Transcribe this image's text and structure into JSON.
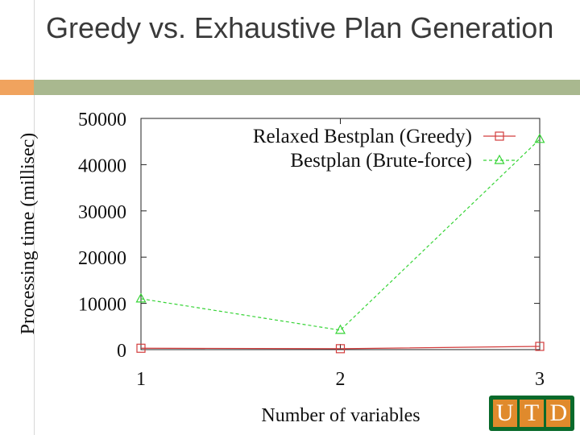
{
  "slide": {
    "title": "Greedy vs. Exhaustive Plan Generation"
  },
  "logo": {
    "text": [
      "U",
      "T",
      "D"
    ]
  },
  "colors": {
    "greedy": "#d23c3c",
    "bruteforce": "#36d436",
    "title_bar": "#a9b88f",
    "title_bar_accent": "#f0a35e",
    "logo_bg": "#0a6a2b",
    "logo_letter_bg": "#e08a2c"
  },
  "chart_data": {
    "type": "line",
    "title": "",
    "xlabel": "Number of variables",
    "ylabel": "Processing time (millisec)",
    "x": [
      1,
      2,
      3
    ],
    "xlim": [
      1,
      3
    ],
    "ylim": [
      0,
      50000
    ],
    "yticks": [
      0,
      10000,
      20000,
      30000,
      40000,
      50000
    ],
    "xticks": [
      1,
      2,
      3
    ],
    "grid": false,
    "legend_position": "top-right",
    "series": [
      {
        "name": "Relaxed Bestplan (Greedy)",
        "values": [
          300,
          200,
          700
        ],
        "marker": "square",
        "color_key": "greedy",
        "dash": "solid"
      },
      {
        "name": "Bestplan (Brute-force)",
        "values": [
          11000,
          4200,
          45500
        ],
        "marker": "triangle",
        "color_key": "bruteforce",
        "dash": "dashed"
      }
    ]
  }
}
